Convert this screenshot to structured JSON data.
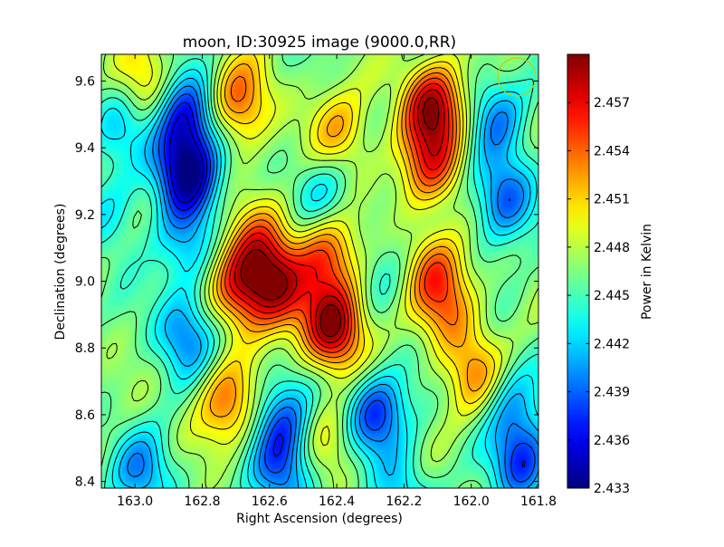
{
  "chart_data": {
    "type": "heatmap",
    "title": "moon, ID:30925 image (9000.0,RR)",
    "xlabel": "Right Ascension (degrees)",
    "ylabel": "Declination (degrees)",
    "colorbar_label": "Power in Kelvin",
    "xlim": [
      163.1,
      161.8
    ],
    "ylim": [
      8.38,
      9.68
    ],
    "x_ticks": [
      163.0,
      162.8,
      162.6,
      162.4,
      162.2,
      162.0,
      161.8
    ],
    "x_tick_labels": [
      "163.0",
      "162.8",
      "162.6",
      "162.4",
      "162.2",
      "162.0",
      "161.8"
    ],
    "y_ticks": [
      8.4,
      8.6,
      8.8,
      9.0,
      9.2,
      9.4,
      9.6
    ],
    "y_tick_labels": [
      "8.4",
      "8.6",
      "8.8",
      "9.0",
      "9.2",
      "9.4",
      "9.6"
    ],
    "colorbar_range": [
      2.433,
      2.46
    ],
    "colorbar_ticks": [
      2.433,
      2.436,
      2.439,
      2.442,
      2.445,
      2.448,
      2.451,
      2.454,
      2.457
    ],
    "colorbar_tick_labels": [
      "2.433",
      "2.436",
      "2.439",
      "2.442",
      "2.445",
      "2.448",
      "2.451",
      "2.454",
      "2.457"
    ],
    "colormap": "jet",
    "contours": true,
    "grid": false,
    "base_level": 2.4465,
    "features": [
      {
        "ra": 162.85,
        "dec": 9.33,
        "value": 2.4335
      },
      {
        "ra": 162.85,
        "dec": 9.5,
        "value": 2.437
      },
      {
        "ra": 162.85,
        "dec": 9.1,
        "value": 2.442
      },
      {
        "ra": 162.85,
        "dec": 8.84,
        "value": 2.4395
      },
      {
        "ra": 162.69,
        "dec": 9.54,
        "value": 2.4545
      },
      {
        "ra": 162.69,
        "dec": 8.98,
        "value": 2.4555
      },
      {
        "ra": 162.58,
        "dec": 8.98,
        "value": 2.456
      },
      {
        "ra": 162.63,
        "dec": 9.1,
        "value": 2.453
      },
      {
        "ra": 162.41,
        "dec": 8.86,
        "value": 2.4595
      },
      {
        "ra": 162.43,
        "dec": 9.08,
        "value": 2.4545
      },
      {
        "ra": 162.39,
        "dec": 9.45,
        "value": 2.452
      },
      {
        "ra": 162.28,
        "dec": 8.6,
        "value": 2.4375
      },
      {
        "ra": 162.11,
        "dec": 9.53,
        "value": 2.4585
      },
      {
        "ra": 162.12,
        "dec": 9.35,
        "value": 2.4545
      },
      {
        "ra": 162.11,
        "dec": 9.04,
        "value": 2.4525
      },
      {
        "ra": 162.07,
        "dec": 8.92,
        "value": 2.452
      },
      {
        "ra": 161.9,
        "dec": 9.25,
        "value": 2.4385
      },
      {
        "ra": 161.92,
        "dec": 9.5,
        "value": 2.441
      },
      {
        "ra": 162.73,
        "dec": 8.63,
        "value": 2.4535
      },
      {
        "ra": 162.56,
        "dec": 8.58,
        "value": 2.4395
      },
      {
        "ra": 162.56,
        "dec": 8.42,
        "value": 2.4395
      },
      {
        "ra": 162.98,
        "dec": 8.42,
        "value": 2.4405
      },
      {
        "ra": 161.84,
        "dec": 8.45,
        "value": 2.438
      },
      {
        "ra": 161.88,
        "dec": 8.63,
        "value": 2.4415
      },
      {
        "ra": 161.99,
        "dec": 8.72,
        "value": 2.4525
      },
      {
        "ra": 162.43,
        "dec": 8.52,
        "value": 2.45
      },
      {
        "ra": 162.44,
        "dec": 9.27,
        "value": 2.4425
      },
      {
        "ra": 163.07,
        "dec": 9.2,
        "value": 2.443
      },
      {
        "ra": 163.05,
        "dec": 9.48,
        "value": 2.4425
      },
      {
        "ra": 162.98,
        "dec": 9.6,
        "value": 2.451
      },
      {
        "ra": 162.25,
        "dec": 9.05,
        "value": 2.4445
      },
      {
        "ra": 162.2,
        "dec": 8.35,
        "value": 2.442
      }
    ]
  }
}
